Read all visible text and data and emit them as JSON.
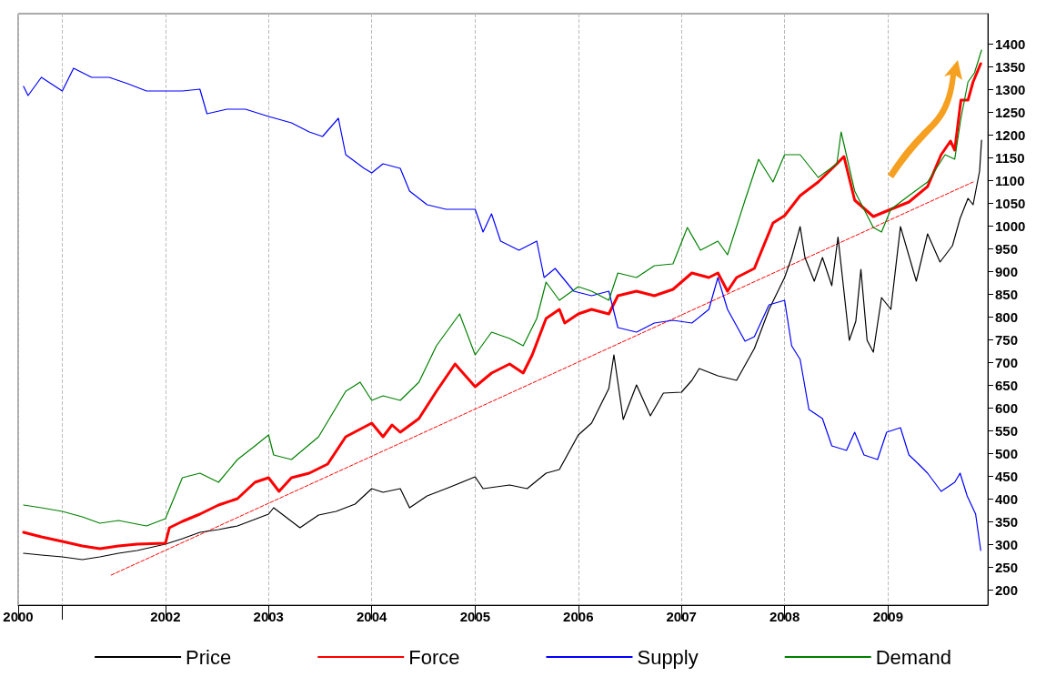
{
  "chart_data": {
    "type": "line",
    "xlim": [
      "2000-07-29",
      "2009-12-20"
    ],
    "ylim": [
      166,
      1466
    ],
    "xticks": [
      {
        "value": "2000-07-29",
        "label": "2000"
      },
      {
        "value": "2001",
        "label": null
      },
      "2002",
      "2003",
      "2004",
      "2005",
      "2006",
      "2007",
      "2008",
      "2009"
    ],
    "yticks": [
      200,
      250,
      300,
      350,
      400,
      450,
      500,
      550,
      600,
      650,
      700,
      750,
      800,
      850,
      900,
      950,
      1000,
      1050,
      1100,
      1150,
      1200,
      1250,
      1300,
      1350,
      1400
    ],
    "grid": "x",
    "legend": "bottom",
    "marker": "none",
    "series": [
      {
        "name": "Price",
        "color": "#000000",
        "x": [
          "2000-08-17",
          "2000-10-19",
          "2001-01-01",
          "2001-03-13",
          "2001-05-14",
          "2001-07-19",
          "2001-09-23",
          "2002-01-01",
          "2002-03-02",
          "2002-05-03",
          "2002-07-08",
          "2002-09-13",
          "2003-01-01",
          "2003-01-19",
          "2003-04-22",
          "2003-06-27",
          "2003-08-28",
          "2003-11-03",
          "2004-01-01",
          "2004-02-10",
          "2004-04-11",
          "2004-05-14",
          "2004-07-15",
          "2004-09-20",
          "2005-01-01",
          "2005-01-29",
          "2005-05-03",
          "2005-07-04",
          "2005-09-09",
          "2005-10-26",
          "2006-01-01",
          "2006-02-17",
          "2006-04-19",
          "2006-05-07",
          "2006-06-09",
          "2006-07-26",
          "2006-09-13",
          "2006-10-29",
          "2007-01-01",
          "2007-02-07",
          "2007-03-05",
          "2007-05-10",
          "2007-07-15",
          "2007-09-16",
          "2007-11-07",
          "2008-01-01",
          "2008-01-26",
          "2008-02-25",
          "2008-03-13",
          "2008-04-15",
          "2008-05-14",
          "2008-06-16",
          "2008-07-08",
          "2008-08-17",
          "2008-09-09",
          "2008-09-27",
          "2008-10-19",
          "2008-11-10",
          "2008-12-09",
          "2009-01-11",
          "2009-02-14",
          "2009-04-11",
          "2009-05-21",
          "2009-07-04",
          "2009-08-17",
          "2009-09-13",
          "2009-10-11",
          "2009-10-29",
          "2009-11-21",
          "2009-11-28"
        ],
        "values": [
          280,
          276,
          272,
          266,
          272,
          280,
          286,
          300,
          312,
          326,
          332,
          340,
          366,
          380,
          336,
          364,
          372,
          388,
          422,
          414,
          422,
          380,
          406,
          422,
          448,
          422,
          430,
          422,
          456,
          464,
          540,
          566,
          642,
          716,
          574,
          650,
          582,
          632,
          634,
          660,
          686,
          670,
          660,
          730,
          816,
          886,
          930,
          998,
          930,
          878,
          930,
          868,
          975,
          748,
          790,
          904,
          748,
          722,
          842,
          816,
          998,
          878,
          982,
          920,
          956,
          1016,
          1060,
          1046,
          1120,
          1188
        ]
      },
      {
        "name": "Force",
        "color": "#ff0000",
        "x": [
          "2000-08-17",
          "2000-10-19",
          "2001-01-01",
          "2001-03-13",
          "2001-05-14",
          "2001-07-19",
          "2001-09-23",
          "2002-01-01",
          "2002-01-15",
          "2002-03-02",
          "2002-05-03",
          "2002-07-08",
          "2002-09-13",
          "2002-11-14",
          "2003-01-01",
          "2003-02-07",
          "2003-03-23",
          "2003-05-25",
          "2003-07-29",
          "2003-10-01",
          "2004-01-01",
          "2004-02-10",
          "2004-03-13",
          "2004-04-11",
          "2004-06-16",
          "2004-08-17",
          "2004-10-22",
          "2005-01-01",
          "2005-02-28",
          "2005-05-03",
          "2005-06-20",
          "2005-07-22",
          "2005-09-09",
          "2005-10-26",
          "2005-11-14",
          "2006-01-01",
          "2006-02-17",
          "2006-04-19",
          "2006-05-21",
          "2006-07-26",
          "2006-09-27",
          "2006-12-02",
          "2007-02-07",
          "2007-04-08",
          "2007-05-10",
          "2007-06-13",
          "2007-07-15",
          "2007-09-16",
          "2007-11-21",
          "2008-01-01",
          "2008-02-25",
          "2008-04-29",
          "2008-07-04",
          "2008-07-29",
          "2008-09-05",
          "2008-11-10",
          "2009-01-11",
          "2009-03-16",
          "2009-05-21",
          "2009-07-08",
          "2009-08-10",
          "2009-08-25",
          "2009-09-16",
          "2009-10-11",
          "2009-10-29",
          "2009-11-25"
        ],
        "values": [
          326,
          316,
          306,
          296,
          290,
          296,
          300,
          302,
          336,
          350,
          366,
          386,
          400,
          436,
          446,
          416,
          446,
          456,
          476,
          536,
          566,
          536,
          562,
          546,
          576,
          636,
          696,
          646,
          676,
          696,
          676,
          716,
          796,
          816,
          786,
          806,
          816,
          806,
          846,
          856,
          846,
          860,
          896,
          886,
          896,
          856,
          886,
          906,
          1006,
          1022,
          1066,
          1096,
          1136,
          1152,
          1056,
          1020,
          1036,
          1052,
          1086,
          1156,
          1186,
          1166,
          1276,
          1276,
          1316,
          1356
        ]
      },
      {
        "name": "Supply",
        "color": "#0000ff",
        "x": [
          "2000-08-17",
          "2000-09-02",
          "2000-10-19",
          "2001-01-01",
          "2001-02-10",
          "2001-04-15",
          "2001-06-16",
          "2001-08-21",
          "2001-10-26",
          "2002-01-01",
          "2002-03-02",
          "2002-05-03",
          "2002-05-28",
          "2002-08-07",
          "2002-10-11",
          "2003-01-01",
          "2003-03-23",
          "2003-05-25",
          "2003-07-11",
          "2003-09-05",
          "2003-10-01",
          "2003-12-05",
          "2004-01-01",
          "2004-02-10",
          "2004-04-11",
          "2004-05-14",
          "2004-07-15",
          "2004-09-20",
          "2005-01-01",
          "2005-01-29",
          "2005-02-28",
          "2005-04-01",
          "2005-06-05",
          "2005-08-07",
          "2005-09-02",
          "2005-10-11",
          "2005-12-16",
          "2006-02-17",
          "2006-04-19",
          "2006-05-21",
          "2006-07-26",
          "2006-09-27",
          "2006-12-02",
          "2007-02-07",
          "2007-04-08",
          "2007-05-10",
          "2007-06-13",
          "2007-08-14",
          "2007-09-16",
          "2007-11-07",
          "2008-01-01",
          "2008-01-26",
          "2008-02-25",
          "2008-03-27",
          "2008-05-14",
          "2008-06-16",
          "2008-08-07",
          "2008-09-05",
          "2008-10-08",
          "2008-11-25",
          "2008-12-27",
          "2009-02-14",
          "2009-03-16",
          "2009-04-19",
          "2009-05-21",
          "2009-07-08",
          "2009-08-25",
          "2009-09-13",
          "2009-10-08",
          "2009-11-07",
          "2009-11-25"
        ],
        "values": [
          1306,
          1286,
          1326,
          1296,
          1346,
          1326,
          1326,
          1312,
          1296,
          1296,
          1296,
          1300,
          1246,
          1256,
          1256,
          1240,
          1226,
          1206,
          1196,
          1236,
          1156,
          1126,
          1116,
          1136,
          1126,
          1076,
          1046,
          1036,
          1036,
          986,
          1026,
          966,
          946,
          966,
          886,
          906,
          856,
          846,
          856,
          776,
          766,
          786,
          792,
          786,
          816,
          886,
          816,
          746,
          756,
          826,
          836,
          736,
          706,
          596,
          576,
          516,
          506,
          546,
          496,
          486,
          546,
          556,
          496,
          476,
          456,
          416,
          436,
          456,
          406,
          366,
          286
        ]
      },
      {
        "name": "Demand",
        "color": "#008000",
        "x": [
          "2000-08-17",
          "2000-10-19",
          "2001-01-01",
          "2001-03-13",
          "2001-05-14",
          "2001-07-19",
          "2001-10-26",
          "2002-01-01",
          "2002-03-02",
          "2002-05-03",
          "2002-07-08",
          "2002-09-13",
          "2002-11-14",
          "2003-01-01",
          "2003-01-19",
          "2003-03-23",
          "2003-06-27",
          "2003-10-01",
          "2003-11-21",
          "2004-01-01",
          "2004-02-10",
          "2004-04-11",
          "2004-06-16",
          "2004-08-17",
          "2004-11-07",
          "2005-01-01",
          "2005-02-28",
          "2005-05-03",
          "2005-06-20",
          "2005-08-07",
          "2005-09-09",
          "2005-10-26",
          "2006-01-01",
          "2006-02-17",
          "2006-04-19",
          "2006-05-21",
          "2006-07-26",
          "2006-09-27",
          "2006-12-02",
          "2007-01-22",
          "2007-03-09",
          "2007-05-10",
          "2007-06-13",
          "2007-08-14",
          "2007-10-01",
          "2007-11-21",
          "2008-01-01",
          "2008-02-25",
          "2008-04-29",
          "2008-07-04",
          "2008-07-19",
          "2008-09-05",
          "2008-11-10",
          "2008-12-09",
          "2009-01-11",
          "2009-03-16",
          "2009-05-21",
          "2009-07-22",
          "2009-08-25",
          "2009-09-16",
          "2009-10-11",
          "2009-11-03",
          "2009-11-28"
        ],
        "values": [
          386,
          380,
          372,
          360,
          346,
          352,
          340,
          356,
          446,
          456,
          436,
          486,
          516,
          540,
          496,
          486,
          536,
          636,
          656,
          616,
          626,
          616,
          656,
          736,
          806,
          716,
          766,
          752,
          736,
          796,
          876,
          836,
          866,
          856,
          836,
          896,
          886,
          912,
          916,
          996,
          946,
          966,
          936,
          1056,
          1146,
          1096,
          1156,
          1156,
          1106,
          1136,
          1206,
          1076,
          996,
          986,
          1036,
          1066,
          1096,
          1156,
          1146,
          1236,
          1316,
          1336,
          1386
        ]
      },
      {
        "type": "line",
        "line_style": "dashed",
        "color": "#ff0000",
        "x": [
          "2001-06-23",
          "2009-10-29"
        ],
        "values": [
          232,
          1096
        ]
      }
    ]
  }
}
